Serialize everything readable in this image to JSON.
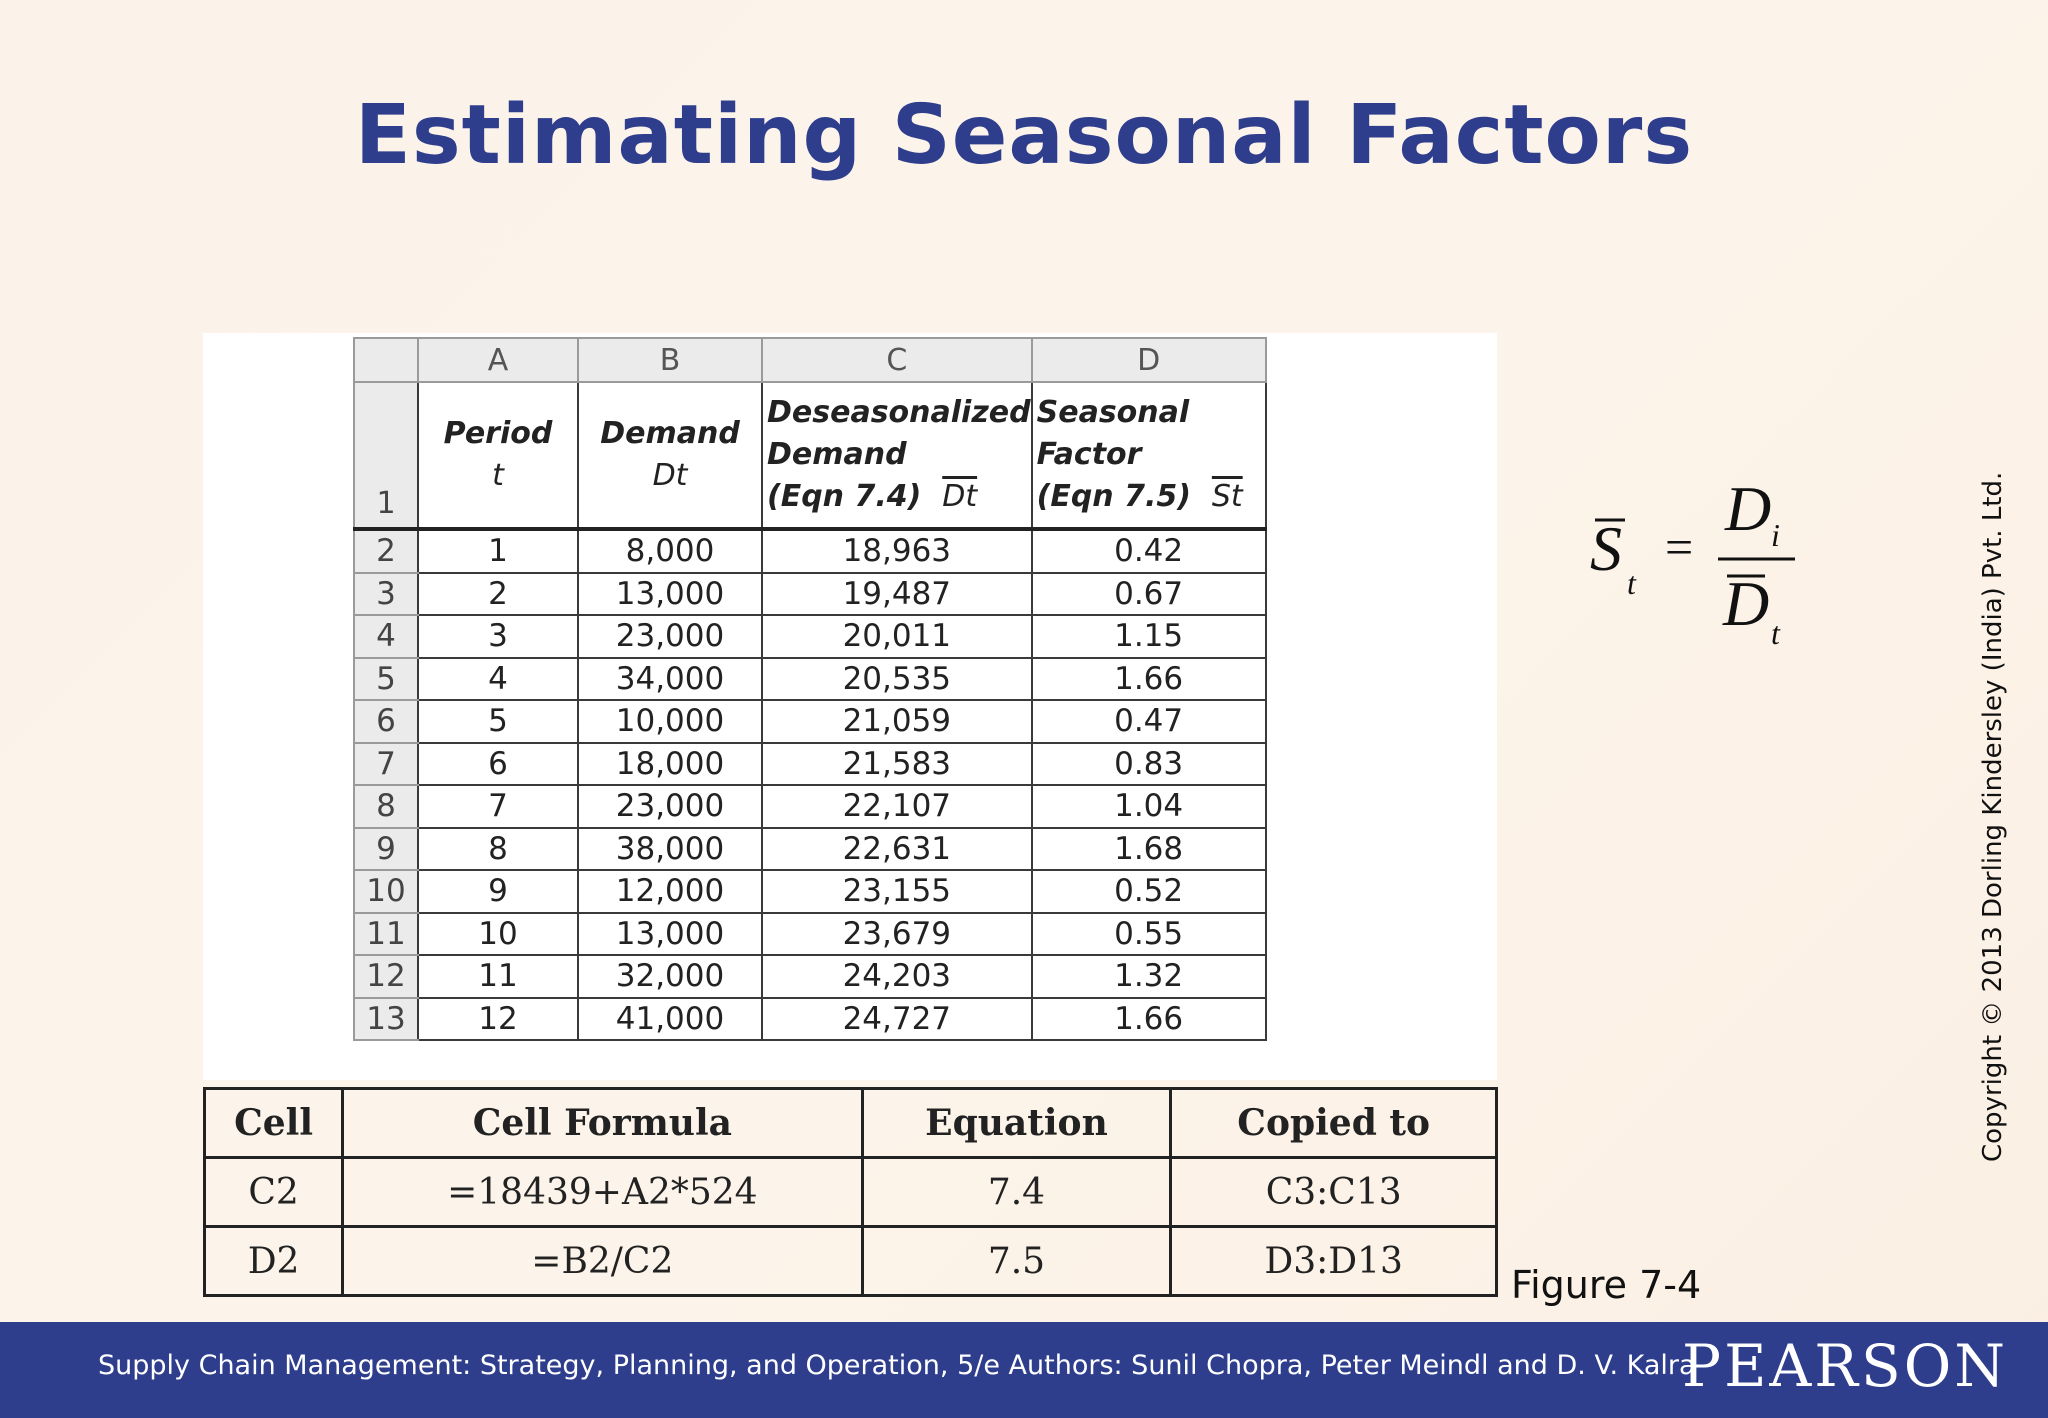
{
  "slide": {
    "title": "Estimating Seasonal Factors",
    "figure_label": "Figure 7-4",
    "copyright": "Copyright © 2013 Dorling Kindersley (India) Pvt. Ltd."
  },
  "equation": {
    "lhs_symbol": "S",
    "lhs_subscript": "t",
    "equals": "=",
    "numerator_symbol": "D",
    "numerator_subscript": "i",
    "denominator_symbol": "D",
    "denominator_subscript": "t"
  },
  "spreadsheet": {
    "column_letters": [
      "A",
      "B",
      "C",
      "D"
    ],
    "header_row_number": "1",
    "headers": {
      "A_line1": "Period",
      "A_line2": "t",
      "B_line1": "Demand",
      "B_line2": "Dt",
      "C_line1": "Deseasonalized",
      "C_line2": "Demand",
      "C_line3": "(Eqn 7.4)",
      "C_symbol": "Dt",
      "D_line1": "Seasonal",
      "D_line2": "Factor",
      "D_line3": "(Eqn 7.5)",
      "D_symbol": "St"
    },
    "rows": [
      {
        "row": "2",
        "period": "1",
        "demand": "8,000",
        "deseasonalized": "18,963",
        "factor": "0.42"
      },
      {
        "row": "3",
        "period": "2",
        "demand": "13,000",
        "deseasonalized": "19,487",
        "factor": "0.67"
      },
      {
        "row": "4",
        "period": "3",
        "demand": "23,000",
        "deseasonalized": "20,011",
        "factor": "1.15"
      },
      {
        "row": "5",
        "period": "4",
        "demand": "34,000",
        "deseasonalized": "20,535",
        "factor": "1.66"
      },
      {
        "row": "6",
        "period": "5",
        "demand": "10,000",
        "deseasonalized": "21,059",
        "factor": "0.47"
      },
      {
        "row": "7",
        "period": "6",
        "demand": "18,000",
        "deseasonalized": "21,583",
        "factor": "0.83"
      },
      {
        "row": "8",
        "period": "7",
        "demand": "23,000",
        "deseasonalized": "22,107",
        "factor": "1.04"
      },
      {
        "row": "9",
        "period": "8",
        "demand": "38,000",
        "deseasonalized": "22,631",
        "factor": "1.68"
      },
      {
        "row": "10",
        "period": "9",
        "demand": "12,000",
        "deseasonalized": "23,155",
        "factor": "0.52"
      },
      {
        "row": "11",
        "period": "10",
        "demand": "13,000",
        "deseasonalized": "23,679",
        "factor": "0.55"
      },
      {
        "row": "12",
        "period": "11",
        "demand": "32,000",
        "deseasonalized": "24,203",
        "factor": "1.32"
      },
      {
        "row": "13",
        "period": "12",
        "demand": "41,000",
        "deseasonalized": "24,727",
        "factor": "1.66"
      }
    ]
  },
  "formula_table": {
    "headers": [
      "Cell",
      "Cell Formula",
      "Equation",
      "Copied to"
    ],
    "rows": [
      [
        "C2",
        "=18439+A2*524",
        "7.4",
        "C3:C13"
      ],
      [
        "D2",
        "=B2/C2",
        "7.5",
        "D3:D13"
      ]
    ]
  },
  "footer": {
    "text": "Supply Chain Management: Strategy, Planning, and Operation, 5/e Authors: Sunil Chopra, Peter Meindl and D. V. Kalra",
    "logo": "PEARSON"
  }
}
